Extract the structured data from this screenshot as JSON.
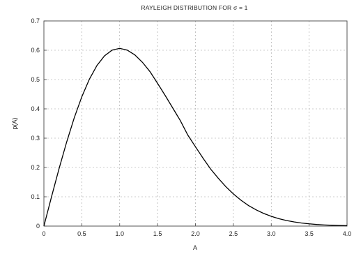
{
  "chart_data": {
    "type": "line",
    "title": "RAYLEIGH DISTRIBUTION  FOR  σ = 1",
    "xlabel": "A",
    "ylabel": "p(A)",
    "xlim": [
      0,
      4
    ],
    "ylim": [
      0,
      0.7
    ],
    "grid": true,
    "x_ticks": [
      "0",
      "0.5",
      "1.0",
      "1.5",
      "2.0",
      "2.5",
      "3.0",
      "3.5",
      "4.0"
    ],
    "y_ticks": [
      "0",
      "0.1",
      "0.2",
      "0.3",
      "0.4",
      "0.5",
      "0.6",
      "0.7"
    ],
    "series": [
      {
        "color": "#000000",
        "x": [
          0,
          0.1,
          0.2,
          0.3,
          0.4,
          0.5,
          0.6,
          0.7,
          0.8,
          0.9,
          1.0,
          1.1,
          1.2,
          1.3,
          1.4,
          1.5,
          1.6,
          1.7,
          1.8,
          1.9,
          2.0,
          2.1,
          2.2,
          2.3,
          2.4,
          2.5,
          2.6,
          2.7,
          2.8,
          2.9,
          3.0,
          3.1,
          3.2,
          3.3,
          3.4,
          3.5,
          3.6,
          3.7,
          3.8,
          3.9,
          4.0
        ],
        "y": [
          0,
          0.0995,
          0.196,
          0.2866,
          0.3692,
          0.4412,
          0.5012,
          0.5481,
          0.5809,
          0.6003,
          0.6065,
          0.6004,
          0.5841,
          0.5589,
          0.527,
          0.487,
          0.4458,
          0.403,
          0.36,
          0.3101,
          0.2707,
          0.2315,
          0.1947,
          0.1636,
          0.1347,
          0.1098,
          0.0883,
          0.0702,
          0.0554,
          0.0432,
          0.0333,
          0.0254,
          0.0191,
          0.0142,
          0.0105,
          0.0077,
          0.0055,
          0.0039,
          0.0028,
          0.0019,
          0.0013
        ]
      }
    ]
  }
}
